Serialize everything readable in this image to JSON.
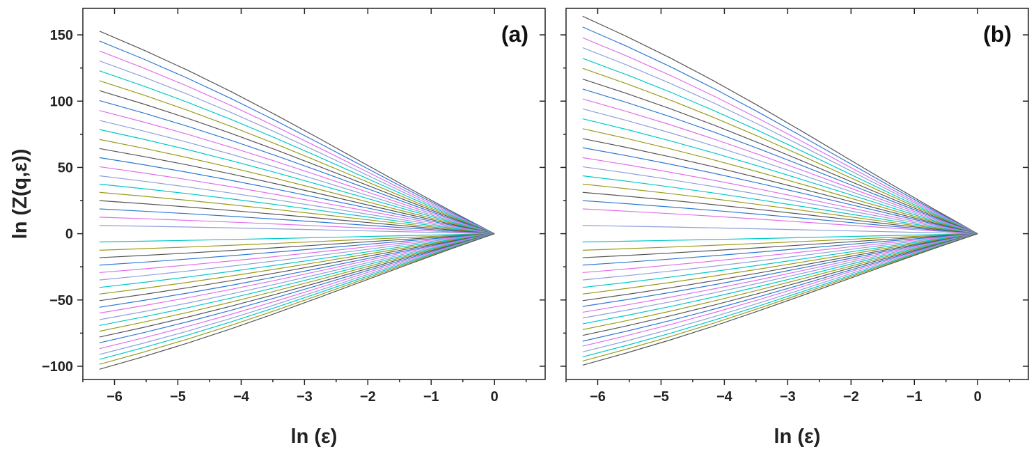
{
  "chart_data": [
    {
      "type": "line",
      "panel_label": "(a)",
      "xlabel": "ln (ε)",
      "ylabel": "ln (Z(q,ε))",
      "xlim": [
        -6.5,
        0.8
      ],
      "ylim": [
        -110,
        170
      ],
      "xticks": [
        -6,
        -5,
        -4,
        -3,
        -2,
        -1,
        0
      ],
      "xtick_labels": [
        "−6",
        "−5",
        "−4",
        "−3",
        "−2",
        "−1",
        "0"
      ],
      "yticks": [
        -100,
        -50,
        0,
        50,
        100,
        150
      ],
      "ytick_labels": [
        "−100",
        "−50",
        "0",
        "50",
        "100",
        "150"
      ],
      "grid": false,
      "x": [
        -6.238,
        -5.545,
        -4.852,
        -4.159,
        -3.466,
        -2.773,
        -2.079,
        -1.386,
        -0.693,
        0
      ],
      "series_colors": [
        "#555555",
        "#2e78d2",
        "#e070e8",
        "#8fa0d8",
        "#00c8c8",
        "#9a9a1a"
      ],
      "slopes": [
        -24.5,
        -23.3,
        -22.1,
        -20.9,
        -19.7,
        -18.5,
        -17.3,
        -16.1,
        -14.9,
        -13.7,
        -12.6,
        -11.4,
        -10.3,
        -9.2,
        -8.1,
        -7.0,
        -6.0,
        -5.0,
        -4.0,
        -3.0,
        -2.0,
        -1.0,
        1.0,
        2.0,
        2.9,
        3.8,
        4.7,
        5.6,
        6.5,
        7.3,
        8.1,
        8.9,
        9.6,
        10.4,
        11.1,
        11.8,
        12.5,
        13.2,
        13.9,
        14.6,
        15.2,
        15.8,
        16.4
      ]
    },
    {
      "type": "line",
      "panel_label": "(b)",
      "xlabel": "ln (ε)",
      "ylabel": "",
      "xlim": [
        -6.5,
        0.8
      ],
      "ylim": [
        -110,
        170
      ],
      "xticks": [
        -6,
        -5,
        -4,
        -3,
        -2,
        -1,
        0
      ],
      "xtick_labels": [
        "−6",
        "−5",
        "−4",
        "−3",
        "−2",
        "−1",
        "0"
      ],
      "yticks": [
        -100,
        -50,
        0,
        50,
        100,
        150
      ],
      "ytick_labels": [
        "",
        "",
        "",
        "",
        "",
        ""
      ],
      "grid": false,
      "x": [
        -6.238,
        -5.545,
        -4.852,
        -4.159,
        -3.466,
        -2.773,
        -2.079,
        -1.386,
        -0.693,
        0
      ],
      "series_colors": [
        "#555555",
        "#2e78d2",
        "#e070e8",
        "#8fa0d8",
        "#00c8c8",
        "#9a9a1a"
      ],
      "slopes": [
        -26.3,
        -25.0,
        -23.7,
        -22.5,
        -21.2,
        -20.0,
        -18.7,
        -17.5,
        -16.3,
        -15.1,
        -13.9,
        -12.7,
        -11.5,
        -10.4,
        -9.2,
        -8.1,
        -7.0,
        -6.0,
        -5.0,
        -4.0,
        -3.0,
        -1.0,
        1.0,
        2.0,
        2.9,
        3.8,
        4.7,
        5.6,
        6.5,
        7.3,
        8.1,
        8.8,
        9.5,
        10.2,
        10.9,
        11.6,
        12.3,
        13.0,
        13.6,
        14.3,
        14.9,
        15.4,
        15.9
      ]
    }
  ]
}
